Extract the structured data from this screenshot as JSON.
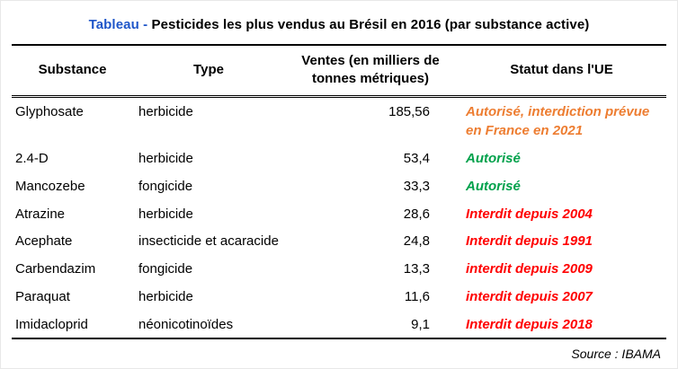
{
  "title": {
    "prefix": "Tableau - ",
    "text": "Pesticides les plus vendus au Brésil en 2016 (par substance active)"
  },
  "source": "Source : IBAMA",
  "colors": {
    "title_blue": "#1F56C9",
    "orange": "#ED7D31",
    "green": "#00A14B",
    "red": "#FF0000"
  },
  "chart_data": {
    "type": "table",
    "title": "Tableau - Pesticides les plus vendus au Brésil en 2016 (par substance active)",
    "columns": [
      "Substance",
      "Type",
      "Ventes (en milliers de tonnes métriques)",
      "Statut dans l'UE"
    ],
    "rows": [
      {
        "substance": "Glyphosate",
        "type": "herbicide",
        "ventes": "185,56",
        "statut": "Autorisé, interdiction prévue en France en 2021",
        "statut_color": "orange"
      },
      {
        "substance": "2.4-D",
        "type": "herbicide",
        "ventes": "53,4",
        "statut": "Autorisé",
        "statut_color": "green"
      },
      {
        "substance": "Mancozebe",
        "type": "fongicide",
        "ventes": "33,3",
        "statut": "Autorisé",
        "statut_color": "green"
      },
      {
        "substance": "Atrazine",
        "type": "herbicide",
        "ventes": "28,6",
        "statut": "Interdit depuis 2004",
        "statut_color": "red"
      },
      {
        "substance": "Acephate",
        "type": "insecticide et acaracide",
        "ventes": "24,8",
        "statut": "Interdit depuis 1991",
        "statut_color": "red"
      },
      {
        "substance": "Carbendazim",
        "type": "fongicide",
        "ventes": "13,3",
        "statut": "interdit depuis 2009",
        "statut_color": "red"
      },
      {
        "substance": "Paraquat",
        "type": "herbicide",
        "ventes": "11,6",
        "statut": "interdit depuis 2007",
        "statut_color": "red"
      },
      {
        "substance": "Imidacloprid",
        "type": "néonicotinoïdes",
        "ventes": "9,1",
        "statut": "Interdit depuis 2018",
        "statut_color": "red"
      }
    ],
    "source": "Source : IBAMA"
  }
}
